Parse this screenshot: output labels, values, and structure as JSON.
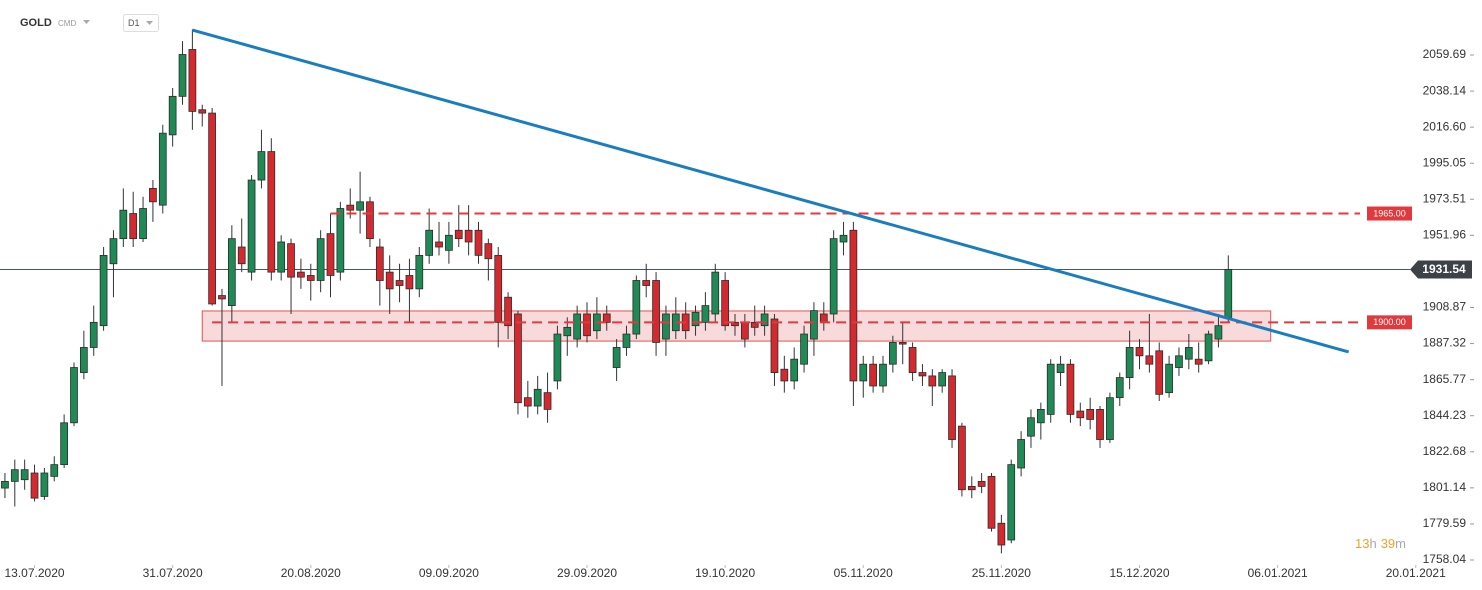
{
  "header": {
    "symbol": "GOLD",
    "market": "CMD",
    "interval": "D1"
  },
  "countdown": [
    "13",
    "h",
    "39",
    "m"
  ],
  "chart_data": {
    "type": "candlestick",
    "xlim": [
      -0.5,
      148.5
    ],
    "ylim": [
      1755.05,
      2092.55
    ],
    "xticks": [
      {
        "value": 3,
        "label": "13.07.2020"
      },
      {
        "value": 17,
        "label": "31.07.2020"
      },
      {
        "value": 31,
        "label": "20.08.2020"
      },
      {
        "value": 45,
        "label": "09.09.2020"
      },
      {
        "value": 59,
        "label": "29.09.2020"
      },
      {
        "value": 73,
        "label": "19.10.2020"
      },
      {
        "value": 87,
        "label": "05.11.2020"
      },
      {
        "value": 101,
        "label": "25.11.2020"
      },
      {
        "value": 115,
        "label": "15.12.2020"
      },
      {
        "value": 129,
        "label": "06.01.2021"
      },
      {
        "value": 143,
        "label": "20.01.2021"
      }
    ],
    "yticks": [
      1758.04,
      1779.59,
      1801.14,
      1822.68,
      1844.23,
      1865.77,
      1887.32,
      1908.87,
      1951.96,
      1973.51,
      1995.05,
      {
        "value": 2016.6,
        "label": "2016.60"
      },
      2038.14,
      2059.69
    ],
    "up_color": "#1f8a56",
    "down_color": "#d42a2f",
    "open": [
      1801,
      1805,
      1806,
      1810,
      1796,
      1808,
      1815,
      1840,
      1870,
      1885,
      1898,
      1935,
      1950,
      1965,
      1950,
      1980,
      1970,
      2012,
      2035,
      2063,
      2027,
      2025,
      1916,
      1910,
      1945,
      1930,
      1985,
      2002,
      1930,
      1947,
      1930,
      1928,
      1925,
      1953,
      1930,
      1970,
      1967,
      1972,
      1945,
      1930,
      1925,
      1928,
      1920,
      1940,
      1948,
      1943,
      1955,
      1955,
      1955,
      1947,
      1940,
      1915,
      1905,
      1855,
      1850,
      1858,
      1865,
      1892,
      1890,
      1905,
      1895,
      1905,
      1873,
      1885,
      1893,
      1925,
      1925,
      1890,
      1895,
      1905,
      1898,
      1900,
      1905,
      1925,
      1900,
      1900,
      1900,
      1898,
      1902,
      1872,
      1865,
      1875,
      1890,
      1905,
      1905,
      1948,
      1955,
      1865,
      1875,
      1862,
      1875,
      1888,
      1885,
      1870,
      1868,
      1862,
      1868,
      1838,
      1802,
      1805,
      1808,
      1780,
      1770,
      1813,
      1832,
      1840,
      1845,
      1870,
      1875,
      1847,
      1848,
      1848,
      1830,
      1855,
      1867,
      1885,
      1880,
      1883,
      1858,
      1873,
      1878,
      1878,
      1877,
      1890,
      1903
    ],
    "high": [
      1810,
      1818,
      1818,
      1815,
      1813,
      1820,
      1845,
      1876,
      1895,
      1910,
      1945,
      1955,
      1980,
      1978,
      1975,
      1985,
      2018,
      2040,
      2068,
      2075,
      2030,
      2028,
      1920,
      1958,
      1962,
      1988,
      2015,
      2010,
      1952,
      1950,
      1938,
      1935,
      1955,
      1965,
      1972,
      1980,
      1990,
      1975,
      1950,
      1940,
      1935,
      1938,
      1945,
      1968,
      1960,
      1960,
      1970,
      1970,
      1960,
      1950,
      1945,
      1918,
      1907,
      1865,
      1868,
      1870,
      1898,
      1903,
      1910,
      1912,
      1915,
      1910,
      1890,
      1898,
      1928,
      1935,
      1930,
      1910,
      1915,
      1912,
      1910,
      1918,
      1935,
      1930,
      1905,
      1905,
      1910,
      1910,
      1905,
      1880,
      1885,
      1898,
      1912,
      1912,
      1955,
      1960,
      1960,
      1880,
      1880,
      1880,
      1892,
      1900,
      1888,
      1875,
      1872,
      1872,
      1872,
      1840,
      1808,
      1810,
      1810,
      1785,
      1818,
      1835,
      1848,
      1852,
      1878,
      1880,
      1878,
      1852,
      1855,
      1850,
      1858,
      1870,
      1895,
      1890,
      1905,
      1888,
      1880,
      1885,
      1893,
      1888,
      1895,
      1905,
      1940
    ],
    "low": [
      1795,
      1790,
      1800,
      1793,
      1794,
      1805,
      1813,
      1838,
      1866,
      1880,
      1895,
      1915,
      1945,
      1945,
      1948,
      1960,
      1965,
      2005,
      2030,
      2015,
      2017,
      1910,
      1862,
      1900,
      1930,
      1925,
      1980,
      1925,
      1925,
      1905,
      1920,
      1913,
      1918,
      1915,
      1925,
      1962,
      1953,
      1945,
      1910,
      1905,
      1912,
      1900,
      1915,
      1935,
      1940,
      1935,
      1945,
      1940,
      1935,
      1925,
      1885,
      1890,
      1845,
      1843,
      1845,
      1840,
      1860,
      1880,
      1885,
      1888,
      1890,
      1895,
      1865,
      1880,
      1890,
      1915,
      1880,
      1880,
      1890,
      1890,
      1892,
      1895,
      1900,
      1895,
      1892,
      1885,
      1892,
      1892,
      1862,
      1858,
      1860,
      1870,
      1880,
      1895,
      1900,
      1940,
      1850,
      1855,
      1858,
      1858,
      1870,
      1875,
      1865,
      1862,
      1850,
      1858,
      1825,
      1796,
      1795,
      1798,
      1775,
      1762,
      1768,
      1808,
      1825,
      1830,
      1840,
      1862,
      1840,
      1838,
      1836,
      1825,
      1828,
      1850,
      1860,
      1872,
      1870,
      1853,
      1855,
      1868,
      1872,
      1870,
      1875,
      1885,
      1900
    ],
    "close": [
      1805,
      1812,
      1812,
      1795,
      1810,
      1815,
      1840,
      1873,
      1885,
      1900,
      1940,
      1950,
      1967,
      1950,
      1968,
      1972,
      2013,
      2035,
      2060,
      2026,
      2025,
      1911,
      1914,
      1950,
      1935,
      1985,
      2002,
      1930,
      1948,
      1927,
      1927,
      1925,
      1950,
      1928,
      1968,
      1967,
      1972,
      1950,
      1925,
      1920,
      1922,
      1920,
      1940,
      1955,
      1945,
      1952,
      1950,
      1948,
      1940,
      1938,
      1900,
      1898,
      1852,
      1850,
      1860,
      1848,
      1893,
      1897,
      1905,
      1892,
      1905,
      1900,
      1885,
      1893,
      1925,
      1922,
      1888,
      1905,
      1905,
      1895,
      1906,
      1910,
      1930,
      1898,
      1898,
      1890,
      1897,
      1905,
      1870,
      1865,
      1878,
      1893,
      1907,
      1900,
      1950,
      1952,
      1865,
      1875,
      1862,
      1875,
      1888,
      1887,
      1870,
      1868,
      1862,
      1870,
      1830,
      1800,
      1800,
      1802,
      1777,
      1767,
      1815,
      1830,
      1843,
      1848,
      1875,
      1875,
      1845,
      1843,
      1842,
      1830,
      1855,
      1867,
      1885,
      1880,
      1875,
      1857,
      1875,
      1880,
      1885,
      1875,
      1893,
      1898,
      1931.54
    ],
    "trendline": {
      "x": [
        19,
        136.2
      ],
      "y": [
        2074.6,
        1882.3
      ],
      "color": "#1a7dc0"
    },
    "zone": {
      "x": [
        20,
        128.3
      ],
      "y": [
        1888.8,
        1906.8
      ],
      "color": "#e05555"
    },
    "levels": [
      {
        "value": 1965,
        "label": "1965.00",
        "x_start": 33,
        "color": "#e0393e"
      },
      {
        "value": 1900,
        "label": "1900.00",
        "x_start": 21,
        "color": "#e0393e"
      }
    ],
    "last_price": {
      "value": 1931.54,
      "label": "1931.54"
    }
  }
}
